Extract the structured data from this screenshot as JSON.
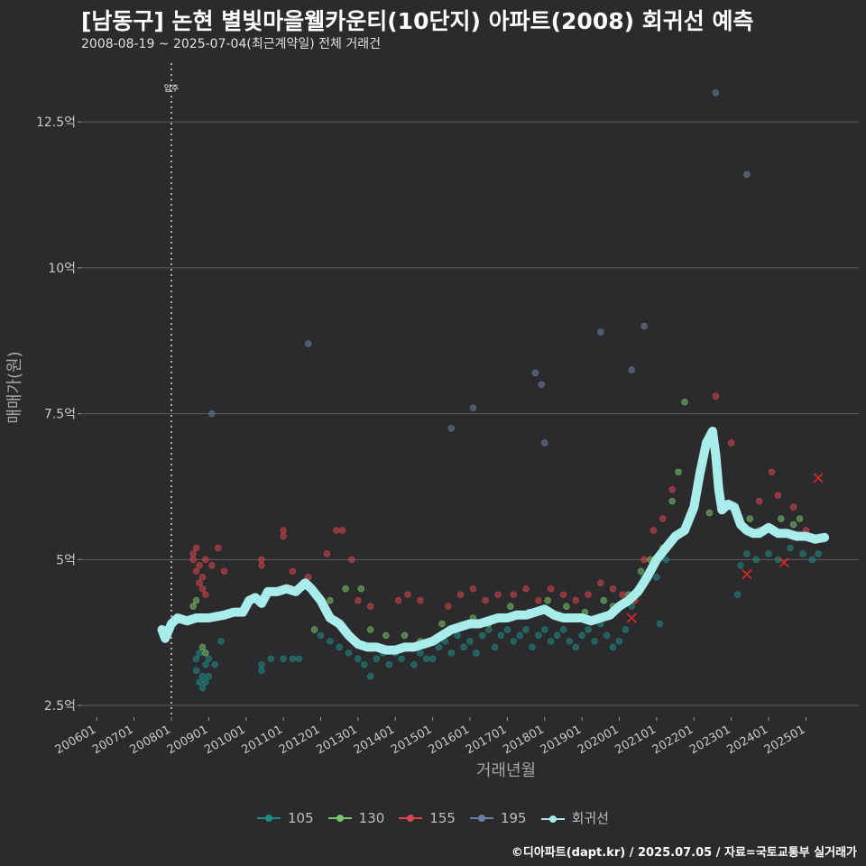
{
  "title": "[남동구] 논현 별빛마을웰카운티(10단지) 아파트(2008) 회귀선 예측",
  "subtitle": "2008-08-19 ~ 2025-07-04(최근계약일) 전체 거래건",
  "footer": "©디아파트(dapt.kr) / 2025.07.05 / 자료=국토교통부 실거래가",
  "colors": {
    "background": "#2b2b2d",
    "grid": "#5e5e60",
    "s105": "#1f8c86",
    "s130": "#78c46a",
    "s155": "#d9454e",
    "s195": "#6b7fa3",
    "regression": "#a8ecec",
    "cancel": "#e02a2a"
  },
  "chart_data": {
    "type": "scatter",
    "title": "[남동구] 논현 별빛마을웰카운티(10단지) 아파트(2008) 회귀선 예측",
    "xlabel": "거래년월",
    "ylabel": "매매가(원)",
    "xlim": [
      "2005-08",
      "2026-06"
    ],
    "ylim": [
      2.3,
      13.6
    ],
    "grid": true,
    "legend_position": "bottom",
    "x_ticks": [
      "200601",
      "200701",
      "200801",
      "200901",
      "201001",
      "201101",
      "201201",
      "201301",
      "201401",
      "201501",
      "201601",
      "201701",
      "201801",
      "201901",
      "202001",
      "202101",
      "202201",
      "202301",
      "202401",
      "202501"
    ],
    "y_ticks": [
      {
        "value": 2.5,
        "label": "2.5억"
      },
      {
        "value": 5,
        "label": "5억"
      },
      {
        "value": 7.5,
        "label": "7.5억"
      },
      {
        "value": 10,
        "label": "10억"
      },
      {
        "value": 12.5,
        "label": "12.5억"
      }
    ],
    "annotation": {
      "date": "2008-01",
      "label": "입주"
    },
    "series": [
      {
        "name": "105",
        "points": [
          [
            "2008-09",
            3.3
          ],
          [
            "2008-09",
            3.1
          ],
          [
            "2008-10",
            2.9
          ],
          [
            "2008-10",
            3.4
          ],
          [
            "2008-11",
            3.0
          ],
          [
            "2008-11",
            2.8
          ],
          [
            "2008-12",
            3.2
          ],
          [
            "2008-12",
            2.9
          ],
          [
            "2009-01",
            3.3
          ],
          [
            "2009-01",
            3.0
          ],
          [
            "2009-03",
            3.2
          ],
          [
            "2009-05",
            3.6
          ],
          [
            "2010-06",
            3.1
          ],
          [
            "2010-06",
            3.2
          ],
          [
            "2010-09",
            3.3
          ],
          [
            "2011-01",
            3.3
          ],
          [
            "2011-04",
            3.3
          ],
          [
            "2011-06",
            3.3
          ],
          [
            "2012-01",
            3.7
          ],
          [
            "2012-04",
            3.6
          ],
          [
            "2012-07",
            3.5
          ],
          [
            "2012-10",
            3.4
          ],
          [
            "2013-01",
            3.3
          ],
          [
            "2013-03",
            3.2
          ],
          [
            "2013-05",
            3.0
          ],
          [
            "2013-07",
            3.3
          ],
          [
            "2013-09",
            3.4
          ],
          [
            "2013-11",
            3.2
          ],
          [
            "2014-01",
            3.4
          ],
          [
            "2014-03",
            3.3
          ],
          [
            "2014-05",
            3.5
          ],
          [
            "2014-07",
            3.2
          ],
          [
            "2014-09",
            3.4
          ],
          [
            "2014-11",
            3.3
          ],
          [
            "2015-01",
            3.3
          ],
          [
            "2015-03",
            3.5
          ],
          [
            "2015-05",
            3.6
          ],
          [
            "2015-07",
            3.4
          ],
          [
            "2015-09",
            3.7
          ],
          [
            "2015-11",
            3.5
          ],
          [
            "2016-01",
            3.6
          ],
          [
            "2016-03",
            3.4
          ],
          [
            "2016-05",
            3.7
          ],
          [
            "2016-07",
            3.8
          ],
          [
            "2016-09",
            3.5
          ],
          [
            "2016-11",
            3.7
          ],
          [
            "2017-01",
            3.8
          ],
          [
            "2017-03",
            3.6
          ],
          [
            "2017-05",
            3.7
          ],
          [
            "2017-07",
            3.8
          ],
          [
            "2017-09",
            3.5
          ],
          [
            "2017-11",
            3.7
          ],
          [
            "2018-01",
            3.8
          ],
          [
            "2018-03",
            3.6
          ],
          [
            "2018-05",
            3.7
          ],
          [
            "2018-07",
            3.8
          ],
          [
            "2018-09",
            3.6
          ],
          [
            "2018-11",
            3.5
          ],
          [
            "2019-01",
            3.7
          ],
          [
            "2019-03",
            3.8
          ],
          [
            "2019-05",
            3.6
          ],
          [
            "2019-07",
            3.9
          ],
          [
            "2019-09",
            3.7
          ],
          [
            "2019-11",
            3.5
          ],
          [
            "2020-01",
            3.6
          ],
          [
            "2020-03",
            3.8
          ],
          [
            "2020-05",
            4.2
          ],
          [
            "2020-07",
            4.5
          ],
          [
            "2020-09",
            4.7
          ],
          [
            "2020-11",
            4.8
          ],
          [
            "2021-01",
            4.7
          ],
          [
            "2021-02",
            3.9
          ],
          [
            "2021-04",
            5.0
          ],
          [
            "2023-03",
            4.4
          ],
          [
            "2023-04",
            4.9
          ],
          [
            "2023-06",
            5.1
          ],
          [
            "2023-09",
            5.0
          ],
          [
            "2024-01",
            5.1
          ],
          [
            "2024-04",
            5.0
          ],
          [
            "2024-08",
            5.2
          ],
          [
            "2024-12",
            5.1
          ],
          [
            "2025-03",
            5.0
          ],
          [
            "2025-05",
            5.1
          ]
        ]
      },
      {
        "name": "130",
        "points": [
          [
            "2008-08",
            4.2
          ],
          [
            "2008-09",
            4.3
          ],
          [
            "2008-11",
            3.5
          ],
          [
            "2008-12",
            3.4
          ],
          [
            "2011-11",
            3.8
          ],
          [
            "2012-04",
            4.3
          ],
          [
            "2012-09",
            4.5
          ],
          [
            "2013-02",
            4.5
          ],
          [
            "2013-05",
            3.8
          ],
          [
            "2013-10",
            3.7
          ],
          [
            "2014-04",
            3.7
          ],
          [
            "2014-09",
            3.6
          ],
          [
            "2015-04",
            3.9
          ],
          [
            "2015-08",
            3.8
          ],
          [
            "2016-02",
            4.0
          ],
          [
            "2016-07",
            3.9
          ],
          [
            "2017-02",
            4.2
          ],
          [
            "2017-08",
            4.1
          ],
          [
            "2018-02",
            4.3
          ],
          [
            "2018-08",
            4.2
          ],
          [
            "2019-02",
            4.1
          ],
          [
            "2019-08",
            4.3
          ],
          [
            "2019-11",
            4.2
          ],
          [
            "2020-04",
            4.4
          ],
          [
            "2020-08",
            4.8
          ],
          [
            "2020-11",
            5.0
          ],
          [
            "2021-03",
            5.2
          ],
          [
            "2021-06",
            6.0
          ],
          [
            "2021-08",
            6.5
          ],
          [
            "2021-10",
            7.7
          ],
          [
            "2022-06",
            5.8
          ],
          [
            "2023-07",
            5.7
          ],
          [
            "2023-10",
            5.5
          ],
          [
            "2024-05",
            5.7
          ],
          [
            "2024-09",
            5.6
          ],
          [
            "2024-11",
            5.7
          ]
        ]
      },
      {
        "name": "155",
        "points": [
          [
            "2008-08",
            5.1
          ],
          [
            "2008-08",
            5.0
          ],
          [
            "2008-09",
            4.8
          ],
          [
            "2008-09",
            5.2
          ],
          [
            "2008-10",
            4.9
          ],
          [
            "2008-10",
            4.6
          ],
          [
            "2008-11",
            4.5
          ],
          [
            "2008-11",
            4.7
          ],
          [
            "2008-12",
            4.4
          ],
          [
            "2008-12",
            5.0
          ],
          [
            "2009-02",
            4.9
          ],
          [
            "2009-04",
            5.2
          ],
          [
            "2009-06",
            4.8
          ],
          [
            "2010-06",
            5.0
          ],
          [
            "2010-06",
            4.9
          ],
          [
            "2011-01",
            5.5
          ],
          [
            "2011-01",
            5.4
          ],
          [
            "2011-04",
            4.8
          ],
          [
            "2011-09",
            4.7
          ],
          [
            "2012-03",
            5.1
          ],
          [
            "2012-06",
            5.5
          ],
          [
            "2012-08",
            5.5
          ],
          [
            "2012-11",
            5.0
          ],
          [
            "2013-01",
            4.3
          ],
          [
            "2013-05",
            4.2
          ],
          [
            "2014-02",
            4.3
          ],
          [
            "2014-05",
            4.4
          ],
          [
            "2014-09",
            4.3
          ],
          [
            "2015-06",
            4.2
          ],
          [
            "2015-10",
            4.4
          ],
          [
            "2016-02",
            4.5
          ],
          [
            "2016-06",
            4.3
          ],
          [
            "2016-10",
            4.4
          ],
          [
            "2017-03",
            4.4
          ],
          [
            "2017-07",
            4.5
          ],
          [
            "2017-11",
            4.3
          ],
          [
            "2018-03",
            4.5
          ],
          [
            "2018-07",
            4.4
          ],
          [
            "2018-11",
            4.3
          ],
          [
            "2019-03",
            4.4
          ],
          [
            "2019-07",
            4.6
          ],
          [
            "2019-11",
            4.5
          ],
          [
            "2020-02",
            4.4
          ],
          [
            "2020-06",
            4.3
          ],
          [
            "2020-09",
            5.0
          ],
          [
            "2020-12",
            5.5
          ],
          [
            "2021-03",
            5.7
          ],
          [
            "2021-06",
            6.2
          ],
          [
            "2022-08",
            7.8
          ],
          [
            "2023-01",
            7.0
          ],
          [
            "2023-10",
            6.0
          ],
          [
            "2024-02",
            6.5
          ],
          [
            "2024-04",
            6.1
          ],
          [
            "2024-09",
            5.9
          ],
          [
            "2025-01",
            5.5
          ]
        ]
      },
      {
        "name": "195",
        "points": [
          [
            "2009-02",
            7.5
          ],
          [
            "2011-09",
            8.7
          ],
          [
            "2015-07",
            7.25
          ],
          [
            "2016-02",
            7.6
          ],
          [
            "2017-10",
            8.2
          ],
          [
            "2017-12",
            8.0
          ],
          [
            "2018-01",
            7.0
          ],
          [
            "2019-07",
            8.9
          ],
          [
            "2020-05",
            8.25
          ],
          [
            "2020-09",
            9.0
          ],
          [
            "2022-08",
            13.0
          ],
          [
            "2023-06",
            11.6
          ]
        ]
      }
    ],
    "cancelled": [
      [
        "2023-06",
        4.75
      ],
      [
        "2024-06",
        4.95
      ],
      [
        "2025-05",
        6.4
      ],
      [
        "2020-05",
        4.0
      ]
    ],
    "regression": {
      "name": "회귀선",
      "points": [
        [
          "2007-10",
          3.8
        ],
        [
          "2007-11",
          3.65
        ],
        [
          "2008-01",
          3.9
        ],
        [
          "2008-03",
          4.0
        ],
        [
          "2008-06",
          3.95
        ],
        [
          "2008-09",
          4.0
        ],
        [
          "2009-01",
          4.0
        ],
        [
          "2009-06",
          4.05
        ],
        [
          "2009-09",
          4.1
        ],
        [
          "2009-12",
          4.1
        ],
        [
          "2010-02",
          4.3
        ],
        [
          "2010-04",
          4.35
        ],
        [
          "2010-06",
          4.25
        ],
        [
          "2010-08",
          4.45
        ],
        [
          "2010-11",
          4.45
        ],
        [
          "2011-02",
          4.5
        ],
        [
          "2011-05",
          4.45
        ],
        [
          "2011-08",
          4.6
        ],
        [
          "2011-10",
          4.5
        ],
        [
          "2012-01",
          4.3
        ],
        [
          "2012-04",
          4.0
        ],
        [
          "2012-07",
          3.9
        ],
        [
          "2012-10",
          3.7
        ],
        [
          "2013-01",
          3.55
        ],
        [
          "2013-04",
          3.5
        ],
        [
          "2013-07",
          3.5
        ],
        [
          "2013-10",
          3.45
        ],
        [
          "2014-01",
          3.45
        ],
        [
          "2014-04",
          3.5
        ],
        [
          "2014-07",
          3.5
        ],
        [
          "2014-10",
          3.55
        ],
        [
          "2015-01",
          3.6
        ],
        [
          "2015-04",
          3.7
        ],
        [
          "2015-07",
          3.8
        ],
        [
          "2015-10",
          3.85
        ],
        [
          "2016-01",
          3.9
        ],
        [
          "2016-04",
          3.9
        ],
        [
          "2016-07",
          3.95
        ],
        [
          "2016-10",
          4.0
        ],
        [
          "2017-01",
          4.0
        ],
        [
          "2017-04",
          4.05
        ],
        [
          "2017-07",
          4.05
        ],
        [
          "2017-10",
          4.1
        ],
        [
          "2018-01",
          4.15
        ],
        [
          "2018-04",
          4.05
        ],
        [
          "2018-07",
          4.0
        ],
        [
          "2018-10",
          4.0
        ],
        [
          "2019-01",
          4.0
        ],
        [
          "2019-04",
          3.95
        ],
        [
          "2019-07",
          4.0
        ],
        [
          "2019-10",
          4.05
        ],
        [
          "2020-01",
          4.2
        ],
        [
          "2020-04",
          4.3
        ],
        [
          "2020-07",
          4.45
        ],
        [
          "2020-10",
          4.7
        ],
        [
          "2021-01",
          5.0
        ],
        [
          "2021-04",
          5.2
        ],
        [
          "2021-07",
          5.4
        ],
        [
          "2021-10",
          5.5
        ],
        [
          "2022-01",
          5.9
        ],
        [
          "2022-03",
          6.5
        ],
        [
          "2022-05",
          7.0
        ],
        [
          "2022-07",
          7.2
        ],
        [
          "2022-08",
          6.8
        ],
        [
          "2022-09",
          6.2
        ],
        [
          "2022-10",
          5.85
        ],
        [
          "2022-12",
          5.95
        ],
        [
          "2023-02",
          5.9
        ],
        [
          "2023-04",
          5.6
        ],
        [
          "2023-06",
          5.5
        ],
        [
          "2023-08",
          5.45
        ],
        [
          "2023-10",
          5.45
        ],
        [
          "2024-01",
          5.55
        ],
        [
          "2024-04",
          5.45
        ],
        [
          "2024-07",
          5.45
        ],
        [
          "2024-10",
          5.4
        ],
        [
          "2025-01",
          5.4
        ],
        [
          "2025-04",
          5.35
        ],
        [
          "2025-07",
          5.38
        ]
      ]
    }
  },
  "legend": [
    {
      "label": "105",
      "color": "#1f8c86"
    },
    {
      "label": "130",
      "color": "#78c46a"
    },
    {
      "label": "155",
      "color": "#d9454e"
    },
    {
      "label": "195",
      "color": "#6b7fa3"
    },
    {
      "label": "회귀선",
      "color": "#a8ecec"
    }
  ]
}
